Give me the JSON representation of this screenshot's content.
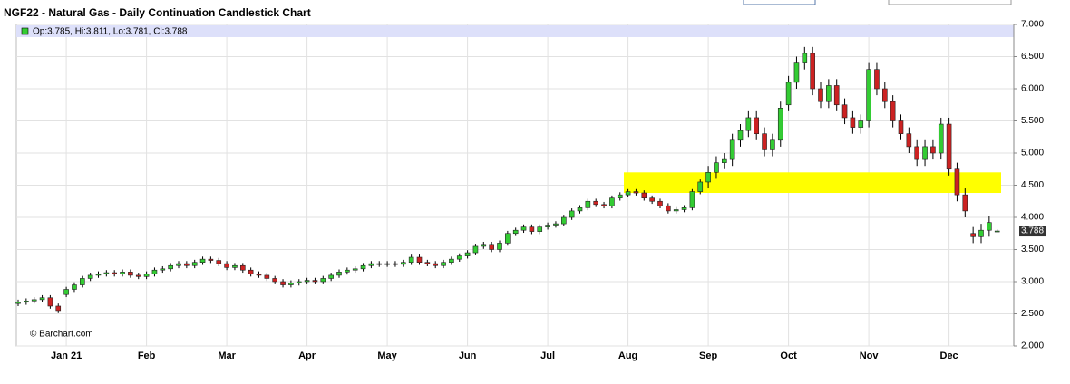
{
  "chart_data": {
    "type": "candlestick",
    "title": "NGF22 - Natural Gas - Daily Continuation Candlestick Chart",
    "legend_text": "Op:3.785, Hi:3.811, Lo:3.781, Cl:3.788",
    "watermark": "© Barchart.com",
    "up_color": "#33cc33",
    "down_color": "#cc2222",
    "highlight_color": "#ffff00",
    "highlight": [
      4.38,
      4.7
    ],
    "grid": true,
    "categories": [
      null,
      null,
      null,
      null,
      null,
      null,
      "Jan 21",
      null,
      null,
      null,
      null,
      null,
      null,
      null,
      null,
      null,
      "Feb",
      null,
      null,
      null,
      null,
      null,
      null,
      null,
      null,
      null,
      "Mar",
      null,
      null,
      null,
      null,
      null,
      null,
      null,
      null,
      null,
      "Apr",
      null,
      null,
      null,
      null,
      null,
      null,
      null,
      null,
      null,
      "May",
      null,
      null,
      null,
      null,
      null,
      null,
      null,
      null,
      null,
      "Jun",
      null,
      null,
      null,
      null,
      null,
      null,
      null,
      null,
      null,
      "Jul",
      null,
      null,
      null,
      null,
      null,
      null,
      null,
      null,
      null,
      "Aug",
      null,
      null,
      null,
      null,
      null,
      null,
      null,
      null,
      null,
      "Sep",
      null,
      null,
      null,
      null,
      null,
      null,
      null,
      null,
      null,
      "Oct",
      null,
      null,
      null,
      null,
      null,
      null,
      null,
      null,
      null,
      "Nov",
      null,
      null,
      null,
      null,
      null,
      null,
      null,
      null,
      null,
      "Dec",
      null,
      null,
      null,
      null,
      null,
      null
    ],
    "open": [
      2.66,
      2.68,
      2.7,
      2.72,
      2.75,
      2.62,
      2.8,
      2.88,
      2.95,
      3.05,
      3.1,
      3.12,
      3.14,
      3.12,
      3.15,
      3.1,
      3.08,
      3.12,
      3.18,
      3.2,
      3.25,
      3.28,
      3.25,
      3.3,
      3.35,
      3.33,
      3.28,
      3.22,
      3.25,
      3.18,
      3.12,
      3.1,
      3.05,
      3.0,
      2.95,
      2.98,
      3.0,
      3.02,
      3.0,
      3.05,
      3.1,
      3.15,
      3.18,
      3.2,
      3.25,
      3.28,
      3.27,
      3.28,
      3.27,
      3.3,
      3.38,
      3.3,
      3.28,
      3.25,
      3.3,
      3.35,
      3.4,
      3.45,
      3.55,
      3.58,
      3.5,
      3.6,
      3.75,
      3.8,
      3.85,
      3.78,
      3.85,
      3.88,
      3.9,
      4.0,
      4.1,
      4.15,
      4.25,
      4.2,
      4.18,
      4.3,
      4.35,
      4.4,
      4.38,
      4.3,
      4.25,
      4.18,
      4.1,
      4.12,
      4.15,
      4.4,
      4.55,
      4.7,
      4.85,
      4.9,
      5.2,
      5.35,
      5.55,
      5.3,
      5.05,
      5.2,
      5.75,
      6.1,
      6.4,
      6.55,
      6.0,
      5.8,
      6.05,
      5.75,
      5.55,
      5.4,
      5.5,
      6.3,
      6.0,
      5.8,
      5.5,
      5.3,
      5.1,
      4.9,
      5.1,
      5.0,
      5.45,
      4.75,
      4.35,
      3.75,
      3.7,
      3.8,
      3.785
    ],
    "high": [
      2.72,
      2.74,
      2.76,
      2.79,
      2.79,
      2.66,
      2.92,
      2.99,
      3.09,
      3.14,
      3.16,
      3.18,
      3.18,
      3.19,
      3.19,
      3.14,
      3.16,
      3.22,
      3.24,
      3.29,
      3.32,
      3.32,
      3.34,
      3.39,
      3.39,
      3.37,
      3.32,
      3.29,
      3.29,
      3.22,
      3.16,
      3.14,
      3.09,
      3.04,
      3.02,
      3.04,
      3.06,
      3.06,
      3.09,
      3.14,
      3.19,
      3.22,
      3.24,
      3.29,
      3.32,
      3.32,
      3.32,
      3.32,
      3.34,
      3.42,
      3.42,
      3.34,
      3.32,
      3.34,
      3.39,
      3.44,
      3.49,
      3.59,
      3.62,
      3.62,
      3.64,
      3.79,
      3.84,
      3.89,
      3.89,
      3.89,
      3.92,
      3.94,
      4.04,
      4.14,
      4.19,
      4.29,
      4.29,
      4.24,
      4.34,
      4.39,
      4.44,
      4.44,
      4.42,
      4.34,
      4.29,
      4.22,
      4.16,
      4.19,
      4.44,
      4.59,
      4.8,
      4.95,
      5.0,
      5.3,
      5.45,
      5.65,
      5.65,
      5.4,
      5.3,
      5.8,
      6.2,
      6.5,
      6.65,
      6.65,
      6.1,
      6.15,
      6.15,
      5.85,
      5.65,
      5.6,
      6.4,
      6.4,
      6.1,
      5.9,
      5.6,
      5.4,
      5.2,
      5.2,
      5.2,
      5.55,
      5.55,
      4.85,
      4.45,
      3.85,
      3.9,
      4.02,
      3.811
    ],
    "low": [
      2.62,
      2.64,
      2.66,
      2.68,
      2.58,
      2.51,
      2.76,
      2.84,
      2.91,
      3.01,
      3.06,
      3.08,
      3.08,
      3.08,
      3.06,
      3.04,
      3.04,
      3.08,
      3.14,
      3.16,
      3.21,
      3.21,
      3.21,
      3.26,
      3.29,
      3.24,
      3.18,
      3.18,
      3.14,
      3.08,
      3.06,
      3.01,
      2.96,
      2.91,
      2.91,
      2.94,
      2.96,
      2.96,
      2.96,
      3.01,
      3.06,
      3.11,
      3.14,
      3.16,
      3.21,
      3.23,
      3.23,
      3.23,
      3.23,
      3.26,
      3.26,
      3.24,
      3.21,
      3.21,
      3.26,
      3.31,
      3.36,
      3.41,
      3.51,
      3.46,
      3.46,
      3.56,
      3.71,
      3.76,
      3.74,
      3.74,
      3.81,
      3.84,
      3.86,
      3.96,
      4.06,
      4.11,
      4.16,
      4.14,
      4.14,
      4.26,
      4.31,
      4.34,
      4.26,
      4.21,
      4.14,
      4.06,
      4.06,
      4.08,
      4.11,
      4.36,
      4.45,
      4.6,
      4.75,
      4.8,
      5.1,
      5.25,
      5.2,
      4.95,
      4.95,
      5.1,
      5.65,
      6.0,
      6.3,
      5.9,
      5.7,
      5.7,
      5.65,
      5.45,
      5.3,
      5.3,
      5.4,
      5.9,
      5.7,
      5.4,
      5.2,
      5.0,
      4.8,
      4.8,
      4.9,
      4.9,
      4.65,
      4.25,
      4.0,
      3.6,
      3.6,
      3.7,
      3.781
    ],
    "close": [
      2.68,
      2.7,
      2.72,
      2.75,
      2.62,
      2.55,
      2.88,
      2.95,
      3.05,
      3.1,
      3.12,
      3.14,
      3.12,
      3.15,
      3.1,
      3.08,
      3.12,
      3.18,
      3.2,
      3.25,
      3.28,
      3.25,
      3.3,
      3.35,
      3.33,
      3.28,
      3.22,
      3.25,
      3.18,
      3.12,
      3.1,
      3.05,
      3.0,
      2.95,
      2.98,
      3.0,
      3.02,
      3.0,
      3.05,
      3.1,
      3.15,
      3.18,
      3.2,
      3.25,
      3.28,
      3.27,
      3.28,
      3.27,
      3.3,
      3.38,
      3.3,
      3.28,
      3.25,
      3.3,
      3.35,
      3.4,
      3.45,
      3.55,
      3.58,
      3.5,
      3.6,
      3.75,
      3.8,
      3.85,
      3.78,
      3.85,
      3.88,
      3.9,
      4.0,
      4.1,
      4.15,
      4.25,
      4.2,
      4.18,
      4.3,
      4.35,
      4.4,
      4.38,
      4.3,
      4.25,
      4.18,
      4.1,
      4.12,
      4.15,
      4.4,
      4.55,
      4.7,
      4.85,
      4.9,
      5.2,
      5.35,
      5.55,
      5.3,
      5.05,
      5.2,
      5.7,
      6.1,
      6.4,
      6.55,
      6.0,
      5.8,
      6.05,
      5.75,
      5.55,
      5.4,
      5.5,
      6.3,
      6.0,
      5.8,
      5.5,
      5.3,
      5.1,
      4.9,
      5.1,
      5.0,
      5.45,
      4.75,
      4.35,
      4.1,
      3.7,
      3.8,
      3.92,
      3.788
    ],
    "ylim": [
      2,
      7
    ],
    "yticks": [
      {
        "value": 2,
        "label": "2.000"
      },
      {
        "value": 2.5,
        "label": "2.500"
      },
      {
        "value": 3,
        "label": "3.000"
      },
      {
        "value": 3.5,
        "label": "3.500"
      },
      {
        "value": 4,
        "label": "4.000"
      },
      {
        "value": 4.5,
        "label": "4.500"
      },
      {
        "value": 5,
        "label": "5.000"
      },
      {
        "value": 5.5,
        "label": "5.500"
      },
      {
        "value": 6,
        "label": "6.000"
      },
      {
        "value": 6.5,
        "label": "6.500"
      },
      {
        "value": 7,
        "label": "7.000"
      }
    ]
  }
}
